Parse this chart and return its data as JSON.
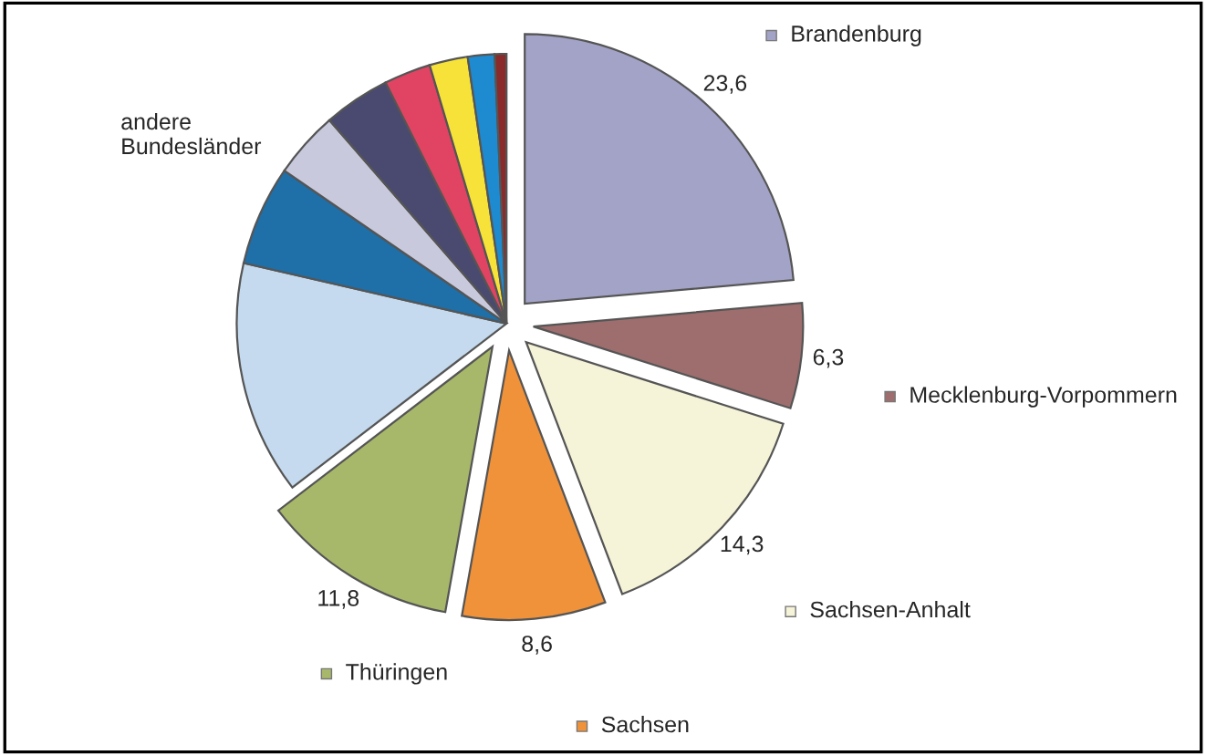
{
  "chart_data": {
    "type": "pie",
    "categories": [
      "Brandenburg",
      "Mecklenburg-Vorpommern",
      "Sachsen-Anhalt",
      "Sachsen",
      "Thüringen",
      null,
      null,
      null,
      null,
      null,
      null,
      null,
      null
    ],
    "values": [
      23.6,
      6.3,
      14.3,
      8.6,
      11.8,
      14.0,
      6.0,
      4.0,
      4.0,
      2.8,
      2.3,
      1.6,
      0.7
    ],
    "value_labels": [
      "23,6",
      "6,3",
      "14,3",
      "8,6",
      "11,8",
      null,
      null,
      null,
      null,
      null,
      null,
      null,
      null
    ],
    "colors": [
      "#a3a3c8",
      "#9e6e6e",
      "#f5f3d8",
      "#f0923a",
      "#a7b86a",
      "#c5daee",
      "#1f6fa8",
      "#c9c9de",
      "#4a4a70",
      "#e04462",
      "#f7e23a",
      "#1e8ad0",
      "#8a2a2a"
    ],
    "annotations": [
      "andere Bundesländer"
    ],
    "legend": "right"
  }
}
